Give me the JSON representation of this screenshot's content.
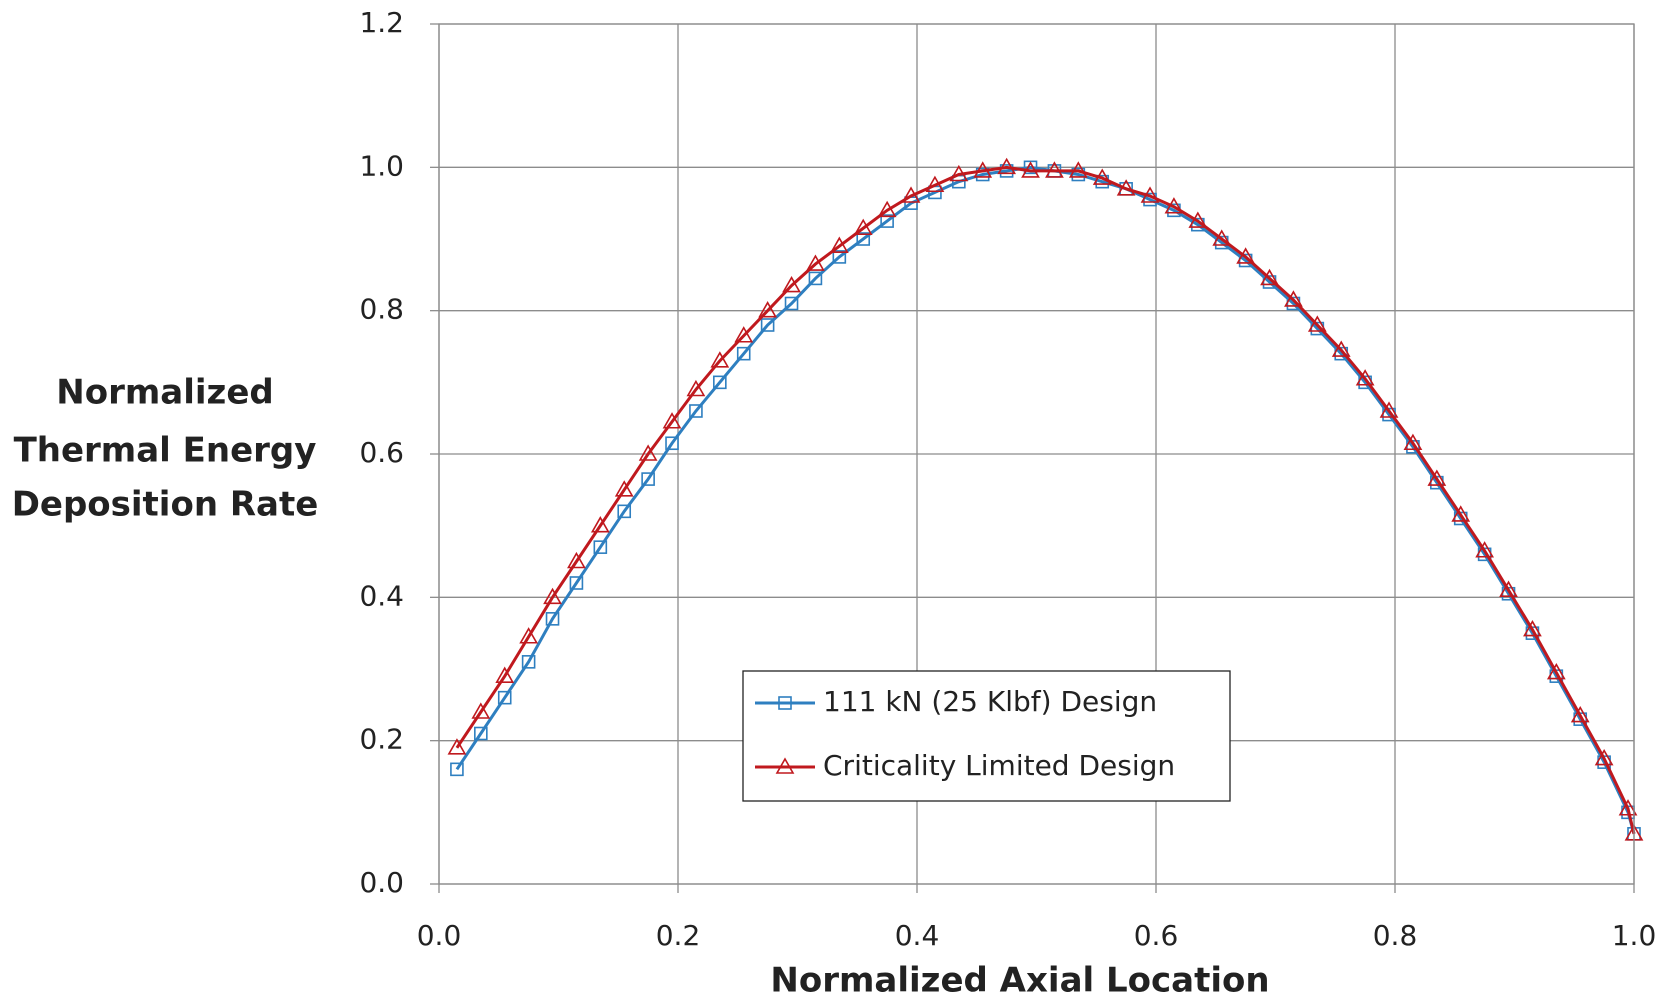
{
  "chart_data": {
    "type": "line",
    "xlabel": "Normalized Axial Location",
    "ylabel": [
      "Normalized",
      "Thermal Energy",
      "Deposition Rate"
    ],
    "xlim": [
      0,
      1
    ],
    "ylim": [
      0,
      1.2
    ],
    "xticks": [
      {
        "value": 0,
        "label": "0.0"
      },
      0.2,
      0.4,
      0.6,
      0.8,
      {
        "value": 1,
        "label": "1.0"
      }
    ],
    "yticks": [
      {
        "value": 0,
        "label": "0.0"
      },
      0.2,
      0.4,
      0.6,
      0.8,
      {
        "value": 1,
        "label": "1.0"
      },
      1.2
    ],
    "grid": true,
    "legend": "lower-center",
    "x": [
      0.015,
      0.035,
      0.055,
      0.075,
      0.095,
      0.115,
      0.135,
      0.155,
      0.175,
      0.195,
      0.215,
      0.235,
      0.255,
      0.275,
      0.295,
      0.315,
      0.335,
      0.355,
      0.375,
      0.395,
      0.415,
      0.435,
      0.455,
      0.475,
      0.495,
      0.515,
      0.535,
      0.555,
      0.575,
      0.595,
      0.615,
      0.635,
      0.655,
      0.675,
      0.695,
      0.715,
      0.735,
      0.755,
      0.775,
      0.795,
      0.815,
      0.835,
      0.855,
      0.875,
      0.895,
      0.915,
      0.935,
      0.955,
      0.975,
      0.995,
      1.0
    ],
    "series": [
      {
        "name": "111 kN (25 Klbf) Design",
        "color": "#2e7fc0",
        "marker": "square",
        "values": [
          0.16,
          0.21,
          0.26,
          0.31,
          0.37,
          0.42,
          0.47,
          0.52,
          0.565,
          0.615,
          0.66,
          0.7,
          0.74,
          0.78,
          0.81,
          0.845,
          0.875,
          0.9,
          0.925,
          0.95,
          0.965,
          0.98,
          0.99,
          0.995,
          1.0,
          0.995,
          0.99,
          0.98,
          0.97,
          0.955,
          0.94,
          0.92,
          0.895,
          0.87,
          0.84,
          0.81,
          0.775,
          0.74,
          0.7,
          0.655,
          0.61,
          0.56,
          0.51,
          0.46,
          0.405,
          0.35,
          0.29,
          0.23,
          0.17,
          0.1,
          0.07
        ]
      },
      {
        "name": "Criticality Limited Design",
        "color": "#c0191e",
        "marker": "triangle",
        "values": [
          0.19,
          0.24,
          0.29,
          0.345,
          0.4,
          0.45,
          0.5,
          0.55,
          0.6,
          0.645,
          0.69,
          0.73,
          0.765,
          0.8,
          0.835,
          0.865,
          0.89,
          0.915,
          0.94,
          0.96,
          0.975,
          0.99,
          0.995,
          1.0,
          0.995,
          0.995,
          0.995,
          0.985,
          0.97,
          0.96,
          0.945,
          0.925,
          0.9,
          0.875,
          0.845,
          0.815,
          0.78,
          0.745,
          0.705,
          0.66,
          0.615,
          0.565,
          0.515,
          0.465,
          0.41,
          0.355,
          0.295,
          0.235,
          0.175,
          0.105,
          0.07
        ]
      }
    ]
  }
}
